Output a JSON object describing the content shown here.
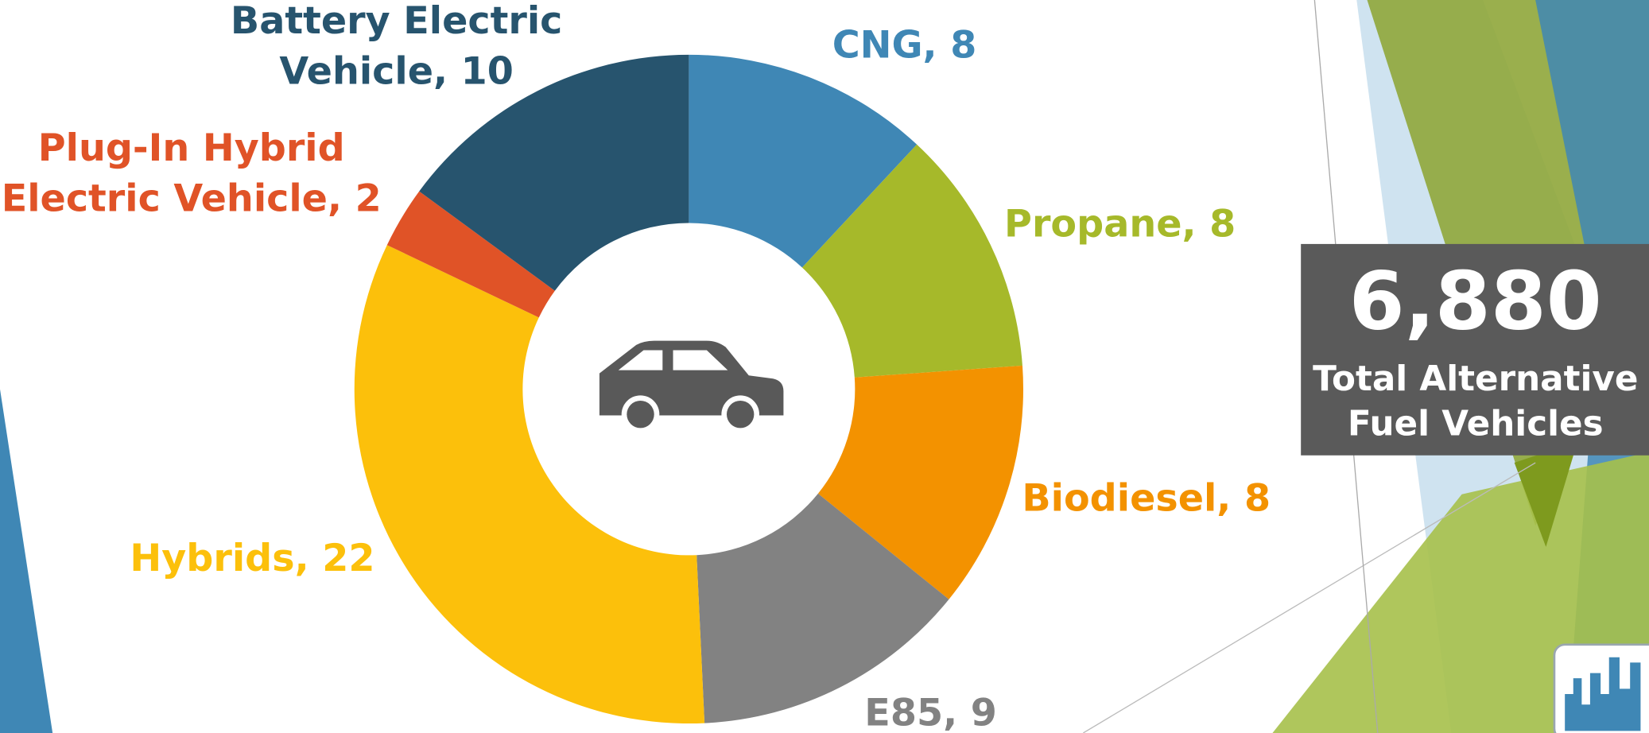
{
  "chart_data": {
    "type": "donut",
    "values": [
      8,
      8,
      8,
      9,
      22,
      2,
      10
    ],
    "value_labels": [
      [
        "CNG, 8"
      ],
      [
        "Propane, 8"
      ],
      [
        "Biodiesel, 8"
      ],
      [
        "E85, 9"
      ],
      [
        "Hybrids, 22"
      ],
      [
        "Plug-In Hybrid",
        "Electric Vehicle, 2"
      ],
      [
        "Battery Electric",
        "Vehicle, 10"
      ]
    ],
    "colors": [
      "#3f87b5",
      "#a6b92a",
      "#f39200",
      "#828282",
      "#fcc00b",
      "#e05327",
      "#27546e"
    ]
  },
  "callout": {
    "value": "6,880",
    "label_lines": [
      "Total Alternative",
      "Fuel Vehicles"
    ]
  }
}
